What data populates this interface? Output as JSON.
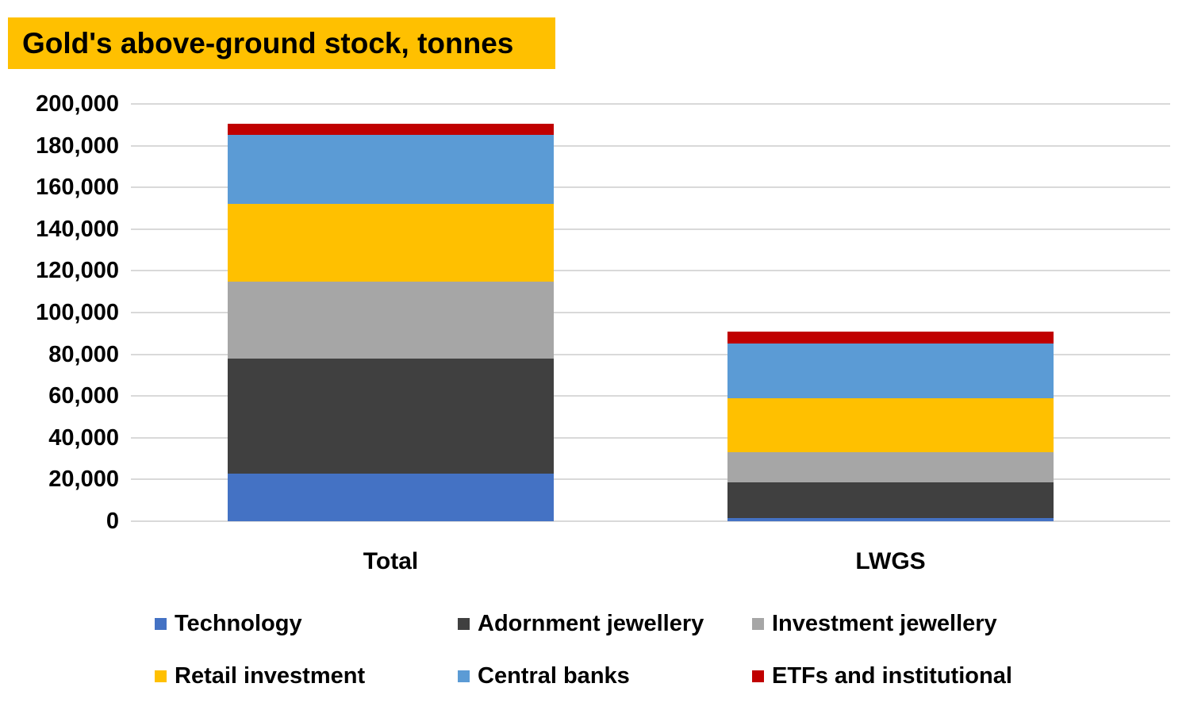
{
  "chart_data": {
    "type": "bar",
    "stacked": true,
    "title": "Gold's above-ground stock, tonnes",
    "xlabel": "",
    "ylabel": "",
    "categories": [
      "Total",
      "LWGS"
    ],
    "series": [
      {
        "name": "Technology",
        "color": "#4472C4",
        "values": [
          23000,
          1500
        ]
      },
      {
        "name": "Adornment jewellery",
        "color": "#404040",
        "values": [
          55000,
          17000
        ]
      },
      {
        "name": "Investment jewellery",
        "color": "#A6A6A6",
        "values": [
          37000,
          14500
        ]
      },
      {
        "name": "Retail investment",
        "color": "#FFC000",
        "values": [
          37000,
          26000
        ]
      },
      {
        "name": "Central banks",
        "color": "#5B9BD5",
        "values": [
          33000,
          26000
        ]
      },
      {
        "name": "ETFs and institutional",
        "color": "#C00000",
        "values": [
          5500,
          6000
        ]
      }
    ],
    "stack_totals": [
      190500,
      91000
    ],
    "ylim": [
      0,
      200000
    ],
    "y_tick_step": 20000,
    "y_tick_labels": [
      "0",
      "20,000",
      "40,000",
      "60,000",
      "80,000",
      "100,000",
      "120,000",
      "140,000",
      "160,000",
      "180,000",
      "200,000"
    ],
    "grid": "horizontal",
    "legend_position": "bottom",
    "legend_rows": [
      [
        "Technology",
        "Adornment jewellery",
        "Investment jewellery"
      ],
      [
        "Retail investment",
        "Central banks",
        "ETFs and institutional"
      ]
    ]
  },
  "styles": {
    "title_background": "#FFC000",
    "title_text_color": "#000000",
    "gridline_color": "#D9D9D9",
    "axis_text_color": "#000000",
    "background": "#FFFFFF"
  }
}
